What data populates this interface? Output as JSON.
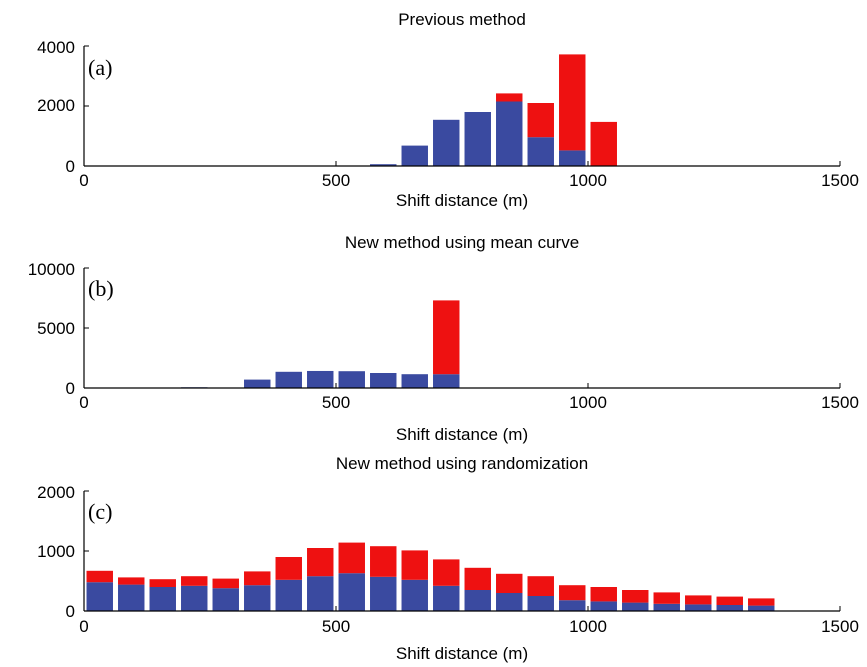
{
  "colors": {
    "stack_bottom": "#3a4aa0",
    "stack_top": "#ee1111",
    "axis": "#000000"
  },
  "chart_data": [
    {
      "type": "bar",
      "stacked": true,
      "title": "Previous method",
      "panel_label": "(a)",
      "xlabel": "Shift distance (m)",
      "ylabel": "",
      "xlim": [
        0,
        1500
      ],
      "ylim": [
        0,
        4000
      ],
      "xticks": [
        "0",
        "500",
        "1000",
        "1500"
      ],
      "yticks": [
        "0",
        "2000",
        "4000"
      ],
      "grid": false,
      "bin_width": 62.5,
      "x": [
        593.75,
        656.25,
        718.75,
        781.25,
        843.75,
        906.25,
        968.75,
        1031.25
      ],
      "series": [
        {
          "values": [
            60,
            680,
            1540,
            1800,
            2150,
            960,
            520,
            0
          ]
        },
        {
          "values": [
            0,
            0,
            0,
            0,
            270,
            1140,
            3200,
            1470
          ]
        }
      ]
    },
    {
      "type": "bar",
      "stacked": true,
      "title": "New method using mean curve",
      "panel_label": "(b)",
      "xlabel": "Shift distance (m)",
      "ylabel": "",
      "xlim": [
        0,
        1500
      ],
      "ylim": [
        0,
        10000
      ],
      "xticks": [
        "0",
        "500",
        "1000",
        "1500"
      ],
      "yticks": [
        "0",
        "5000",
        "10000"
      ],
      "grid": false,
      "bin_width": 62.5,
      "x": [
        218.75,
        343.75,
        406.25,
        468.75,
        531.25,
        593.75,
        656.25,
        718.75
      ],
      "series": [
        {
          "values": [
            60,
            700,
            1350,
            1420,
            1400,
            1250,
            1150,
            1150
          ]
        },
        {
          "values": [
            0,
            0,
            0,
            0,
            0,
            0,
            0,
            6150
          ]
        }
      ]
    },
    {
      "type": "bar",
      "stacked": true,
      "title": "New method using randomization",
      "panel_label": "(c)",
      "xlabel": "Shift distance (m)",
      "ylabel": "",
      "xlim": [
        0,
        1500
      ],
      "ylim": [
        0,
        2000
      ],
      "xticks": [
        "0",
        "500",
        "1000",
        "1500"
      ],
      "yticks": [
        "0",
        "1000",
        "2000"
      ],
      "grid": false,
      "bin_width": 62.5,
      "x": [
        31.25,
        93.75,
        156.25,
        218.75,
        281.25,
        343.75,
        406.25,
        468.75,
        531.25,
        593.75,
        656.25,
        718.75,
        781.25,
        843.75,
        906.25,
        968.75,
        1031.25,
        1093.75,
        1156.25,
        1218.75,
        1281.25,
        1343.75,
        1406.25,
        1468.75
      ],
      "series": [
        {
          "values": [
            480,
            440,
            400,
            420,
            380,
            430,
            520,
            580,
            630,
            570,
            520,
            420,
            350,
            300,
            250,
            180,
            160,
            140,
            120,
            110,
            100,
            90,
            0,
            0
          ]
        },
        {
          "values": [
            190,
            120,
            130,
            160,
            160,
            230,
            380,
            470,
            510,
            510,
            490,
            440,
            370,
            320,
            330,
            250,
            240,
            210,
            190,
            150,
            140,
            120,
            0,
            0
          ]
        }
      ]
    }
  ]
}
